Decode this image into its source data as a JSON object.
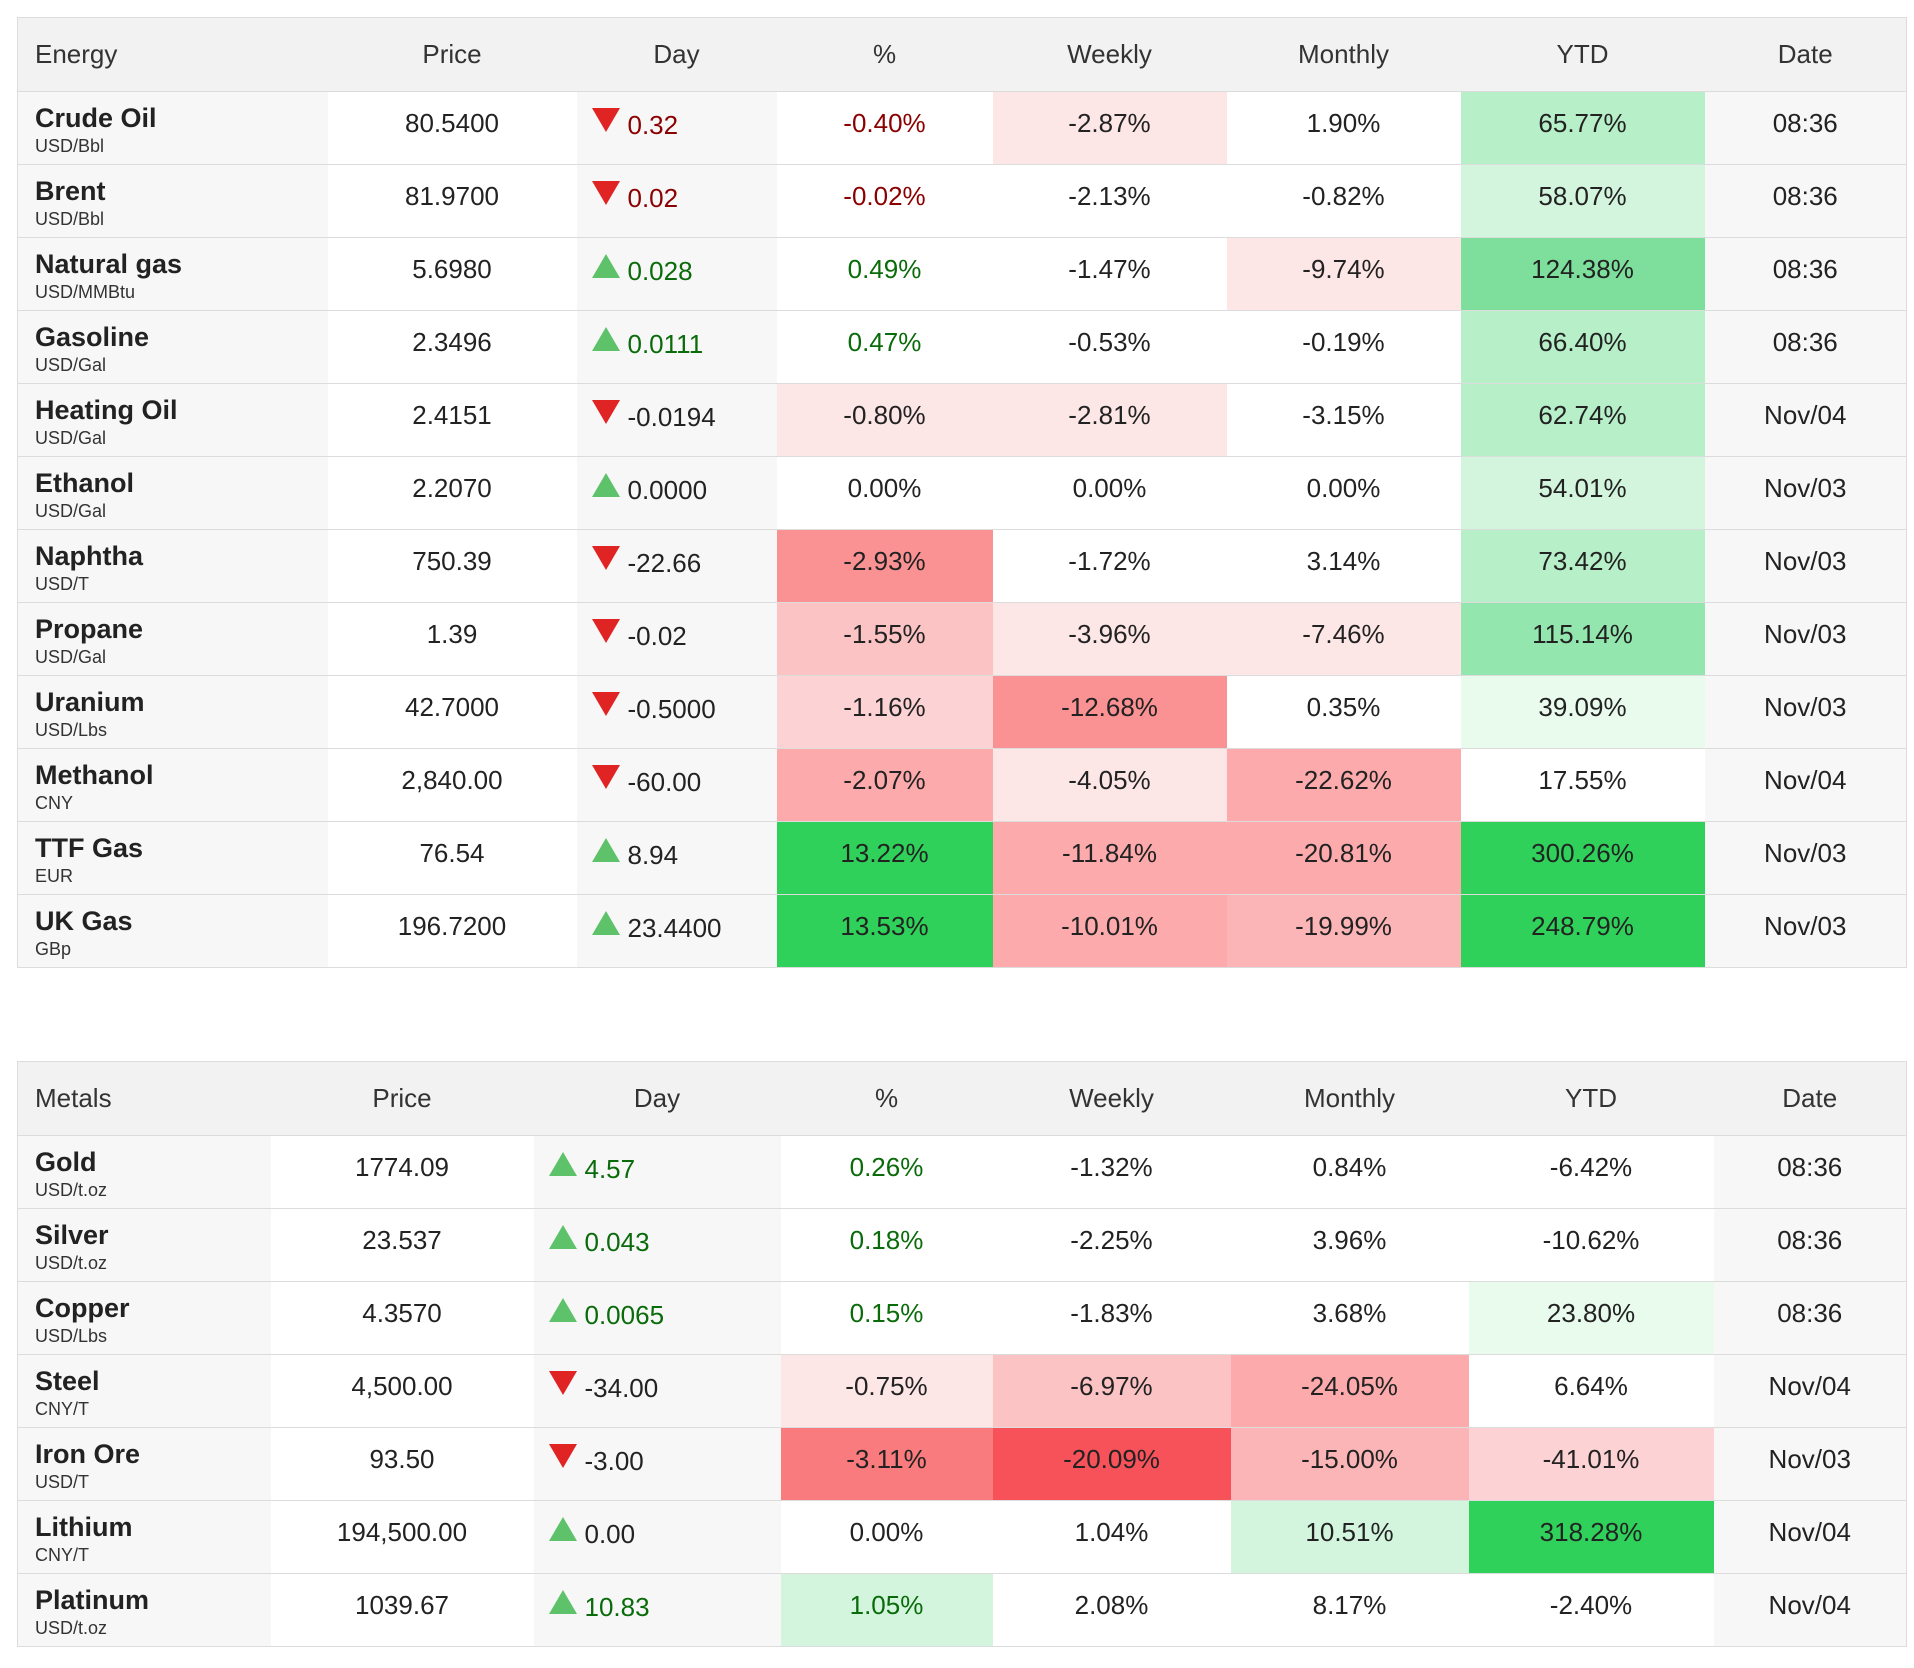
{
  "colors": {
    "header_bg": "#f2f2f2",
    "row_shade": "#f7f7f7",
    "up_arrow": "#5ec26a",
    "down_arrow": "#e02424",
    "negative_text": "#8b0000",
    "positive_text": "#0a6b0a"
  },
  "tables": [
    {
      "headers": [
        "Energy",
        "Price",
        "Day",
        "%",
        "Weekly",
        "Monthly",
        "YTD",
        "Date"
      ],
      "rows": [
        {
          "name": "Crude Oil",
          "unit": "USD/Bbl",
          "price": "80.5400",
          "dir": "down",
          "day": "0.32",
          "pct": "-0.40%",
          "weekly": "-2.87%",
          "monthly": "1.90%",
          "ytd": "65.77%",
          "date": "08:36",
          "bg": {
            "pct": "",
            "weekly": "#fde6e6",
            "monthly": "",
            "ytd": "#b7efc9"
          },
          "fg": {
            "day": "#8b0000",
            "pct": "#8b0000"
          }
        },
        {
          "name": "Brent",
          "unit": "USD/Bbl",
          "price": "81.9700",
          "dir": "down",
          "day": "0.02",
          "pct": "-0.02%",
          "weekly": "-2.13%",
          "monthly": "-0.82%",
          "ytd": "58.07%",
          "date": "08:36",
          "bg": {
            "pct": "",
            "weekly": "",
            "monthly": "",
            "ytd": "#d3f5dd"
          },
          "fg": {
            "day": "#8b0000",
            "pct": "#8b0000"
          }
        },
        {
          "name": "Natural gas",
          "unit": "USD/MMBtu",
          "price": "5.6980",
          "dir": "up",
          "day": "0.028",
          "pct": "0.49%",
          "weekly": "-1.47%",
          "monthly": "-9.74%",
          "ytd": "124.38%",
          "date": "08:36",
          "bg": {
            "pct": "",
            "weekly": "",
            "monthly": "#fde6e6",
            "ytd": "#7ddf9b"
          },
          "fg": {
            "day": "#0a6b0a",
            "pct": "#0a6b0a"
          }
        },
        {
          "name": "Gasoline",
          "unit": "USD/Gal",
          "price": "2.3496",
          "dir": "up",
          "day": "0.0111",
          "pct": "0.47%",
          "weekly": "-0.53%",
          "monthly": "-0.19%",
          "ytd": "66.40%",
          "date": "08:36",
          "bg": {
            "pct": "",
            "weekly": "",
            "monthly": "",
            "ytd": "#b7efc9"
          },
          "fg": {
            "day": "#0a6b0a",
            "pct": "#0a6b0a"
          }
        },
        {
          "name": "Heating Oil",
          "unit": "USD/Gal",
          "price": "2.4151",
          "dir": "down",
          "day": "-0.0194",
          "pct": "-0.80%",
          "weekly": "-2.81%",
          "monthly": "-3.15%",
          "ytd": "62.74%",
          "date": "Nov/04",
          "bg": {
            "pct": "#fde6e6",
            "weekly": "#fde6e6",
            "monthly": "",
            "ytd": "#b7efc9"
          },
          "fg": {
            "day": "",
            "pct": ""
          }
        },
        {
          "name": "Ethanol",
          "unit": "USD/Gal",
          "price": "2.2070",
          "dir": "up",
          "day": "0.0000",
          "pct": "0.00%",
          "weekly": "0.00%",
          "monthly": "0.00%",
          "ytd": "54.01%",
          "date": "Nov/03",
          "bg": {
            "pct": "",
            "weekly": "",
            "monthly": "",
            "ytd": "#d3f5dd"
          },
          "fg": {
            "day": "",
            "pct": ""
          }
        },
        {
          "name": "Naphtha",
          "unit": "USD/T",
          "price": "750.39",
          "dir": "down",
          "day": "-22.66",
          "pct": "-2.93%",
          "weekly": "-1.72%",
          "monthly": "3.14%",
          "ytd": "73.42%",
          "date": "Nov/03",
          "bg": {
            "pct": "#fa9294",
            "weekly": "",
            "monthly": "",
            "ytd": "#b7efc9"
          },
          "fg": {
            "day": "",
            "pct": ""
          }
        },
        {
          "name": "Propane",
          "unit": "USD/Gal",
          "price": "1.39",
          "dir": "down",
          "day": "-0.02",
          "pct": "-1.55%",
          "weekly": "-3.96%",
          "monthly": "-7.46%",
          "ytd": "115.14%",
          "date": "Nov/03",
          "bg": {
            "pct": "#fcc3c5",
            "weekly": "#fde6e6",
            "monthly": "#fde6e6",
            "ytd": "#93e6ad"
          },
          "fg": {
            "day": "",
            "pct": ""
          }
        },
        {
          "name": "Uranium",
          "unit": "USD/Lbs",
          "price": "42.7000",
          "dir": "down",
          "day": "-0.5000",
          "pct": "-1.16%",
          "weekly": "-12.68%",
          "monthly": "0.35%",
          "ytd": "39.09%",
          "date": "Nov/03",
          "bg": {
            "pct": "#fdd2d4",
            "weekly": "#fa9294",
            "monthly": "",
            "ytd": "#e8fbed"
          },
          "fg": {
            "day": "",
            "pct": ""
          }
        },
        {
          "name": "Methanol",
          "unit": "CNY",
          "price": "2,840.00",
          "dir": "down",
          "day": "-60.00",
          "pct": "-2.07%",
          "weekly": "-4.05%",
          "monthly": "-22.62%",
          "ytd": "17.55%",
          "date": "Nov/04",
          "bg": {
            "pct": "#fcaaac",
            "weekly": "#fde6e6",
            "monthly": "#fcaaac",
            "ytd": ""
          },
          "fg": {
            "day": "",
            "pct": ""
          }
        },
        {
          "name": "TTF Gas",
          "unit": "EUR",
          "price": "76.54",
          "dir": "up",
          "day": "8.94",
          "pct": "13.22%",
          "weekly": "-11.84%",
          "monthly": "-20.81%",
          "ytd": "300.26%",
          "date": "Nov/03",
          "bg": {
            "pct": "#2fd15a",
            "weekly": "#fcaaac",
            "monthly": "#fcaaac",
            "ytd": "#2fd15a"
          },
          "fg": {
            "day": "",
            "pct": ""
          }
        },
        {
          "name": "UK Gas",
          "unit": "GBp",
          "price": "196.7200",
          "dir": "up",
          "day": "23.4400",
          "pct": "13.53%",
          "weekly": "-10.01%",
          "monthly": "-19.99%",
          "ytd": "248.79%",
          "date": "Nov/03",
          "bg": {
            "pct": "#2fd15a",
            "weekly": "#fcaaac",
            "monthly": "#fcb5b7",
            "ytd": "#2fd15a"
          },
          "fg": {
            "day": "",
            "pct": ""
          }
        }
      ]
    },
    {
      "headers": [
        "Metals",
        "Price",
        "Day",
        "%",
        "Weekly",
        "Monthly",
        "YTD",
        "Date"
      ],
      "rows": [
        {
          "name": "Gold",
          "unit": "USD/t.oz",
          "price": "1774.09",
          "dir": "up",
          "day": "4.57",
          "pct": "0.26%",
          "weekly": "-1.32%",
          "monthly": "0.84%",
          "ytd": "-6.42%",
          "date": "08:36",
          "bg": {
            "pct": "",
            "weekly": "",
            "monthly": "",
            "ytd": ""
          },
          "fg": {
            "day": "#0a6b0a",
            "pct": "#0a6b0a"
          }
        },
        {
          "name": "Silver",
          "unit": "USD/t.oz",
          "price": "23.537",
          "dir": "up",
          "day": "0.043",
          "pct": "0.18%",
          "weekly": "-2.25%",
          "monthly": "3.96%",
          "ytd": "-10.62%",
          "date": "08:36",
          "bg": {
            "pct": "",
            "weekly": "",
            "monthly": "",
            "ytd": ""
          },
          "fg": {
            "day": "#0a6b0a",
            "pct": "#0a6b0a"
          }
        },
        {
          "name": "Copper",
          "unit": "USD/Lbs",
          "price": "4.3570",
          "dir": "up",
          "day": "0.0065",
          "pct": "0.15%",
          "weekly": "-1.83%",
          "monthly": "3.68%",
          "ytd": "23.80%",
          "date": "08:36",
          "bg": {
            "pct": "",
            "weekly": "",
            "monthly": "",
            "ytd": "#e8fbed"
          },
          "fg": {
            "day": "#0a6b0a",
            "pct": "#0a6b0a"
          }
        },
        {
          "name": "Steel",
          "unit": "CNY/T",
          "price": "4,500.00",
          "dir": "down",
          "day": "-34.00",
          "pct": "-0.75%",
          "weekly": "-6.97%",
          "monthly": "-24.05%",
          "ytd": "6.64%",
          "date": "Nov/04",
          "bg": {
            "pct": "#fde6e6",
            "weekly": "#fcc3c5",
            "monthly": "#fcaaac",
            "ytd": ""
          },
          "fg": {
            "day": "",
            "pct": ""
          }
        },
        {
          "name": "Iron Ore",
          "unit": "USD/T",
          "price": "93.50",
          "dir": "down",
          "day": "-3.00",
          "pct": "-3.11%",
          "weekly": "-20.09%",
          "monthly": "-15.00%",
          "ytd": "-41.01%",
          "date": "Nov/03",
          "bg": {
            "pct": "#fa7b7e",
            "weekly": "#f7525a",
            "monthly": "#fcb5b7",
            "ytd": "#fdd2d4"
          },
          "fg": {
            "day": "",
            "pct": ""
          }
        },
        {
          "name": "Lithium",
          "unit": "CNY/T",
          "price": "194,500.00",
          "dir": "up",
          "day": "0.00",
          "pct": "0.00%",
          "weekly": "1.04%",
          "monthly": "10.51%",
          "ytd": "318.28%",
          "date": "Nov/04",
          "bg": {
            "pct": "",
            "weekly": "",
            "monthly": "#d3f5dd",
            "ytd": "#2fd15a"
          },
          "fg": {
            "day": "",
            "pct": ""
          }
        },
        {
          "name": "Platinum",
          "unit": "USD/t.oz",
          "price": "1039.67",
          "dir": "up",
          "day": "10.83",
          "pct": "1.05%",
          "weekly": "2.08%",
          "monthly": "8.17%",
          "ytd": "-2.40%",
          "date": "Nov/04",
          "bg": {
            "pct": "#d3f5dd",
            "weekly": "",
            "monthly": "",
            "ytd": ""
          },
          "fg": {
            "day": "#0a6b0a",
            "pct": "#0a6b0a"
          }
        }
      ]
    }
  ]
}
